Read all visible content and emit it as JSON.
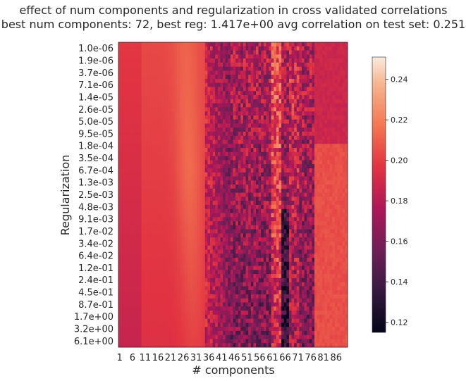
{
  "chart_data": {
    "type": "heatmap",
    "title_lines": [
      "effect of num components and regularization in cross validated correlations",
      "best num components: 72,    best reg: 1.417e+00    avg correlation on test set: 0.251"
    ],
    "xlabel": "# components",
    "ylabel": "Regularization",
    "x_ticks": [
      "1",
      "6",
      "11",
      "16",
      "21",
      "26",
      "31",
      "36",
      "41",
      "46",
      "51",
      "56",
      "61",
      "66",
      "71",
      "76",
      "81",
      "86"
    ],
    "x_range": [
      1,
      90
    ],
    "y_ticks": [
      "1.0e-06",
      "1.9e-06",
      "3.7e-06",
      "7.1e-06",
      "1.4e-05",
      "2.6e-05",
      "5.0e-05",
      "9.5e-05",
      "1.8e-04",
      "3.5e-04",
      "6.7e-04",
      "1.3e-03",
      "2.5e-03",
      "4.8e-03",
      "9.1e-03",
      "1.7e-02",
      "3.4e-02",
      "6.4e-02",
      "1.2e-01",
      "2.4e-01",
      "4.5e-01",
      "8.7e-01",
      "1.7e+00",
      "3.2e+00",
      "6.1e+00"
    ],
    "colorbar": {
      "ticks": [
        "0.12",
        "0.14",
        "0.16",
        "0.18",
        "0.20",
        "0.22",
        "0.24"
      ],
      "tick_values": [
        0.12,
        0.14,
        0.16,
        0.18,
        0.2,
        0.22,
        0.24
      ],
      "range": [
        0.115,
        0.251
      ],
      "colormap": "rocket"
    },
    "best": {
      "num_components": 72,
      "reg": "1.417e+00",
      "avg_correlation": 0.251
    }
  }
}
